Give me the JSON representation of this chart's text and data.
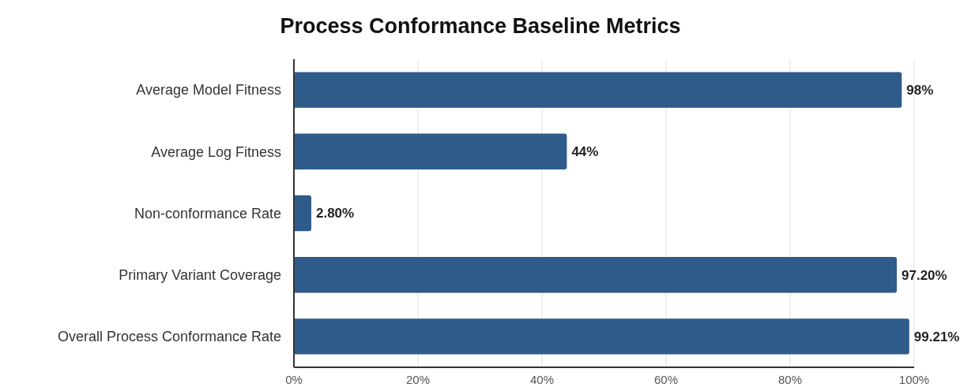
{
  "chart_data": {
    "type": "bar",
    "orientation": "horizontal",
    "title": "Process Conformance Baseline Metrics",
    "categories": [
      "Average Model Fitness",
      "Average Log Fitness",
      "Non-conformance Rate",
      "Primary Variant Coverage",
      "Overall Process Conformance Rate"
    ],
    "values": [
      98,
      44,
      2.8,
      97.2,
      99.21
    ],
    "value_labels": [
      "98%",
      "44%",
      "2.80%",
      "97.20%",
      "99.21%"
    ],
    "color": "#2e5b8a",
    "xlim": [
      0,
      100
    ],
    "xticks": [
      {
        "value": 0,
        "label": "0%"
      },
      {
        "value": 20,
        "label": "20%"
      },
      {
        "value": 40,
        "label": "40%"
      },
      {
        "value": 60,
        "label": "60%"
      },
      {
        "value": 80,
        "label": "80%"
      },
      {
        "value": 100,
        "label": "100%"
      }
    ],
    "grid": "x"
  }
}
